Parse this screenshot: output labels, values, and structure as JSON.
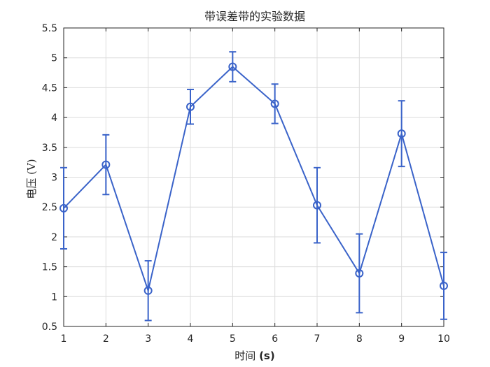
{
  "chart_data": {
    "type": "line",
    "title": "带误差带的实验数据",
    "xlabel": "时间 (s)",
    "ylabel": "电压 (V)",
    "xlim": [
      1,
      10
    ],
    "ylim": [
      0.5,
      5.5
    ],
    "x_ticks": [
      1,
      2,
      3,
      4,
      5,
      6,
      7,
      8,
      9,
      10
    ],
    "y_ticks": [
      "0.5",
      "1",
      "1.5",
      "2",
      "2.5",
      "3",
      "3.5",
      "4",
      "4.5",
      "5",
      "5.5"
    ],
    "grid": true,
    "series": [
      {
        "color": "#3a63c9",
        "marker": "circle",
        "error_bars": true,
        "x": [
          1,
          2,
          3,
          4,
          5,
          6,
          7,
          8,
          9,
          10
        ],
        "y": [
          2.48,
          3.21,
          1.1,
          4.18,
          4.85,
          4.23,
          2.53,
          1.39,
          3.73,
          1.18
        ],
        "err_lower": [
          0.68,
          0.5,
          0.5,
          0.29,
          0.25,
          0.33,
          0.63,
          0.66,
          0.55,
          0.56
        ],
        "err_upper": [
          0.68,
          0.5,
          0.5,
          0.29,
          0.25,
          0.33,
          0.63,
          0.66,
          0.55,
          0.56
        ]
      }
    ]
  }
}
